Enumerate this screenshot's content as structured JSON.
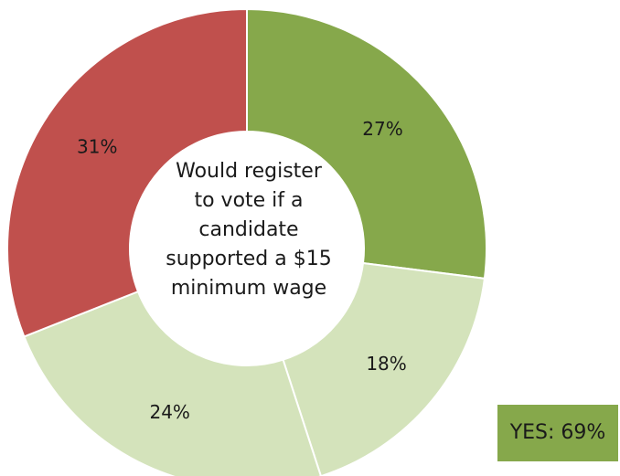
{
  "chart_data": {
    "type": "pie",
    "style": "donut",
    "center_label_lines": [
      "Would register",
      "to vote if a",
      "candidate",
      "supported a $15",
      "minimum wage"
    ],
    "slices": [
      {
        "value": 27,
        "label": "27%",
        "color": "#86a84b"
      },
      {
        "value": 18,
        "label": "18%",
        "color": "#d4e3bb"
      },
      {
        "value": 24,
        "label": "24%",
        "color": "#d4e3bb"
      },
      {
        "value": 31,
        "label": "31%",
        "color": "#c0504d"
      }
    ],
    "start_angle": "top (12 o'clock)",
    "direction": "clockwise",
    "separator_color": "#ffffff"
  },
  "callout": {
    "text": "YES: 69%",
    "background": "#86a84b"
  }
}
